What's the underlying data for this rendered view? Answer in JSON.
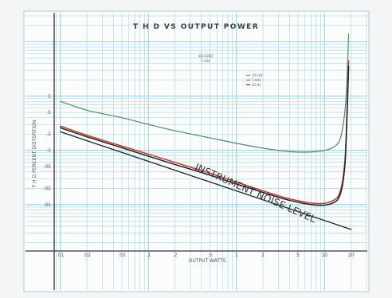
{
  "chart_data": {
    "type": "line",
    "title": "T H D VS OUTPUT POWER",
    "xlabel": "OUTPUT WATTS",
    "ylabel": "T H D  PERCENT DISTORTION",
    "xscale": "log",
    "yscale": "log",
    "xlim": [
      0.0085,
      30
    ],
    "ylim": [
      0.0014,
      30
    ],
    "x_tick_labels": [
      ".01",
      ".02",
      ".05",
      ".1",
      ".2",
      ".5",
      "1",
      "2",
      "5",
      "10",
      "20"
    ],
    "x_ticks": [
      0.01,
      0.02,
      0.05,
      0.1,
      0.2,
      0.5,
      1,
      2,
      5,
      10,
      20
    ],
    "y_tick_labels": [
      "1",
      ".5",
      ".2",
      ".1",
      ".05",
      ".02",
      ".01"
    ],
    "y_ticks": [
      1,
      0.5,
      0.2,
      0.1,
      0.05,
      0.02,
      0.01
    ],
    "grid": true,
    "legend_position": "top-center",
    "note_lines": [
      "8Ω LOAD",
      "1 kHz"
    ],
    "annotation": "INSTRUMENT NOISE LEVEL",
    "colors": {
      "grid": "#9fd0de",
      "green_curve": "#4f8a6a",
      "red_curve": "#c0392b",
      "black_curve": "#1f2326",
      "noise_line": "#1f2326"
    },
    "series": [
      {
        "name": "20 kHz",
        "color": "#4f8a6a",
        "x": [
          0.01,
          0.02,
          0.05,
          0.1,
          0.2,
          0.5,
          1,
          2,
          4,
          8,
          12,
          15,
          17,
          18,
          18.8
        ],
        "y": [
          0.8,
          0.55,
          0.4,
          0.3,
          0.23,
          0.17,
          0.135,
          0.11,
          0.095,
          0.095,
          0.11,
          0.16,
          0.5,
          2,
          14
        ]
      },
      {
        "name": "1 kHz",
        "color": "#c0392b",
        "x": [
          0.01,
          0.02,
          0.05,
          0.1,
          0.2,
          0.5,
          1,
          2,
          4,
          8,
          12,
          15,
          17,
          18,
          18.8
        ],
        "y": [
          0.28,
          0.19,
          0.12,
          0.085,
          0.06,
          0.038,
          0.026,
          0.018,
          0.0128,
          0.0105,
          0.0115,
          0.017,
          0.06,
          0.5,
          4.5
        ]
      },
      {
        "name": "20 Hz",
        "color": "#1f2326",
        "x": [
          0.01,
          0.02,
          0.05,
          0.1,
          0.2,
          0.5,
          1,
          2,
          4,
          8,
          12,
          15,
          17,
          18,
          18.8
        ],
        "y": [
          0.26,
          0.178,
          0.112,
          0.078,
          0.055,
          0.035,
          0.024,
          0.0168,
          0.012,
          0.0098,
          0.0105,
          0.015,
          0.05,
          0.4,
          3.5
        ]
      },
      {
        "name": "INSTRUMENT NOISE LEVEL",
        "color": "#1f2326",
        "x": [
          0.01,
          20
        ],
        "y": [
          0.22,
          0.0035
        ]
      }
    ]
  }
}
